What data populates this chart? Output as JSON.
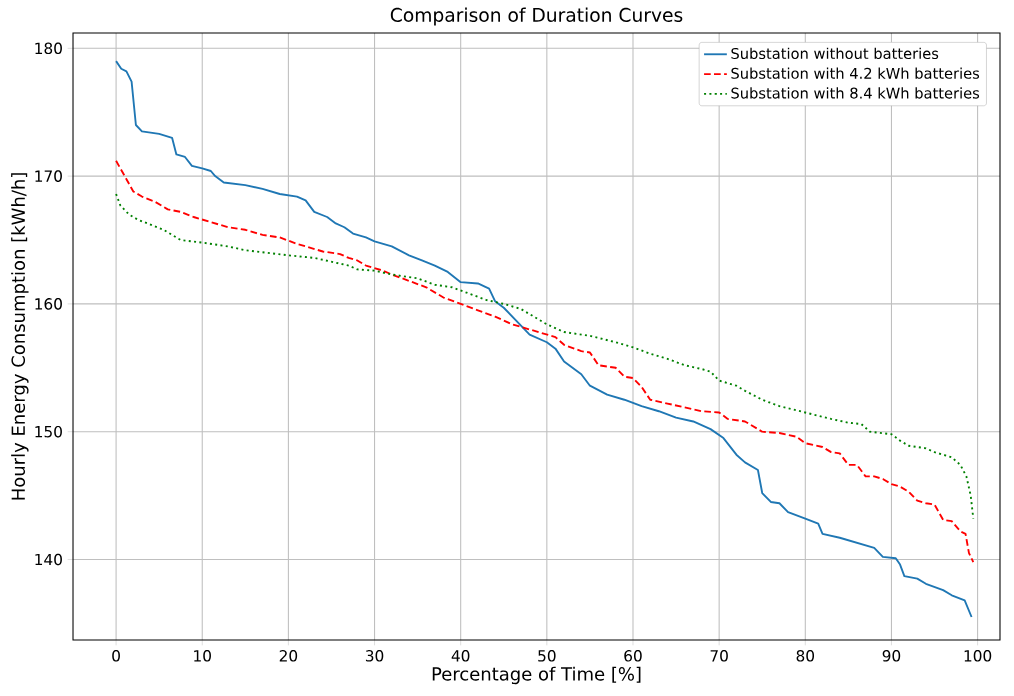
{
  "chart_data": {
    "type": "line",
    "title": "Comparison of Duration Curves",
    "xlabel": "Percentage of Time [%]",
    "ylabel": "Hourly Energy Consumption [kWh/h]",
    "xlim": [
      -5,
      102.6
    ],
    "ylim": [
      133.7,
      181.2
    ],
    "xticks": [
      0,
      10,
      20,
      30,
      40,
      50,
      60,
      70,
      80,
      90,
      100
    ],
    "yticks": [
      140,
      150,
      160,
      170,
      180
    ],
    "grid": true,
    "legend": "top right",
    "series": [
      {
        "name": "Substation without batteries",
        "color": "#1f77b4",
        "line_style": "solid",
        "x": [
          0,
          0.6,
          1.2,
          1.8,
          2.3,
          3,
          5,
          6.5,
          7,
          8,
          8.8,
          10,
          11,
          11.5,
          12.5,
          15,
          17,
          19,
          21,
          22,
          23,
          24.5,
          25.5,
          26.5,
          27.5,
          29,
          30,
          32,
          34,
          35.5,
          37,
          38.5,
          40,
          42,
          43.3,
          44,
          45,
          46,
          48,
          50,
          51,
          52,
          54,
          55,
          57,
          59,
          61,
          63,
          65,
          67,
          69,
          70.5,
          72,
          73,
          74.5,
          75,
          76,
          77,
          78,
          80,
          81.5,
          82,
          84,
          86,
          88,
          89,
          90.5,
          91,
          91.5,
          93,
          94,
          96,
          97,
          98.5,
          99.3
        ],
        "values": [
          179,
          178.4,
          178.2,
          177.4,
          174,
          173.5,
          173.3,
          173,
          171.7,
          171.5,
          170.8,
          170.6,
          170.4,
          170,
          169.5,
          169.3,
          169,
          168.6,
          168.4,
          168.1,
          167.2,
          166.8,
          166.3,
          166,
          165.5,
          165.2,
          164.9,
          164.5,
          163.8,
          163.4,
          163,
          162.5,
          161.7,
          161.6,
          161.2,
          160.2,
          159.7,
          159,
          157.6,
          157,
          156.5,
          155.5,
          154.5,
          153.6,
          152.9,
          152.5,
          152,
          151.6,
          151.1,
          150.8,
          150.2,
          149.5,
          148.2,
          147.6,
          147,
          145.2,
          144.5,
          144.4,
          143.7,
          143.2,
          142.8,
          142,
          141.7,
          141.3,
          140.9,
          140.2,
          140.1,
          139.6,
          138.7,
          138.5,
          138.1,
          137.6,
          137.2,
          136.8,
          135.5
        ]
      },
      {
        "name": "Substation with 4.2 kWh batteries",
        "color": "#ff0000",
        "line_style": "dashed",
        "x": [
          0,
          1,
          2,
          3,
          4.5,
          6,
          7.5,
          9,
          11,
          13,
          15,
          17,
          19,
          21,
          22,
          24,
          26,
          27,
          28,
          29,
          31,
          32,
          34,
          36,
          38,
          40,
          42,
          44,
          46,
          48,
          49,
          51,
          52,
          54,
          55,
          56,
          58,
          59,
          60,
          61,
          62,
          64,
          66,
          68,
          70,
          71,
          73,
          74,
          75,
          77,
          79,
          80,
          82,
          83,
          84,
          85,
          86,
          87,
          88,
          89,
          90,
          91,
          92,
          93,
          94,
          95,
          96,
          97,
          98,
          98.6,
          99,
          99.5
        ],
        "values": [
          171.2,
          170,
          168.8,
          168.4,
          168,
          167.4,
          167.2,
          166.8,
          166.4,
          166,
          165.8,
          165.4,
          165.2,
          164.7,
          164.5,
          164.1,
          163.9,
          163.6,
          163.4,
          163,
          162.6,
          162.3,
          161.8,
          161.3,
          160.5,
          160,
          159.5,
          159,
          158.4,
          158,
          157.8,
          157.4,
          156.8,
          156.3,
          156.2,
          155.2,
          155,
          154.3,
          154.2,
          153.5,
          152.5,
          152.2,
          151.9,
          151.6,
          151.5,
          151,
          150.8,
          150.4,
          150,
          149.9,
          149.6,
          149.1,
          148.8,
          148.4,
          148.3,
          147.4,
          147.4,
          146.5,
          146.5,
          146.3,
          145.9,
          145.7,
          145.3,
          144.6,
          144.4,
          144.3,
          143.1,
          143,
          142.2,
          142,
          140.5,
          139.8
        ]
      },
      {
        "name": "Substation with 8.4 kWh batteries",
        "color": "#008000",
        "line_style": "dotted",
        "x": [
          0,
          0.5,
          1.5,
          2.5,
          4,
          5.5,
          6.5,
          7.5,
          10,
          13,
          15,
          20,
          23,
          25,
          27,
          28,
          30,
          32,
          35,
          37,
          39,
          41,
          43,
          45,
          47,
          48,
          50,
          52,
          55,
          58,
          60,
          62,
          64,
          66,
          68,
          69,
          70,
          72,
          73,
          75,
          77,
          80,
          83,
          85,
          86.5,
          87.5,
          90,
          91,
          92,
          94,
          95,
          97,
          98,
          98.7,
          99.2,
          99.5
        ],
        "values": [
          168.6,
          167.7,
          167,
          166.6,
          166.2,
          165.8,
          165.4,
          165,
          164.8,
          164.5,
          164.2,
          163.8,
          163.6,
          163.3,
          163,
          162.7,
          162.6,
          162.3,
          162,
          161.5,
          161.3,
          160.8,
          160.3,
          160,
          159.6,
          159.2,
          158.4,
          157.8,
          157.5,
          157,
          156.6,
          156.1,
          155.7,
          155.2,
          154.9,
          154.7,
          154,
          153.6,
          153.2,
          152.5,
          152,
          151.5,
          151,
          150.7,
          150.6,
          150,
          149.8,
          149.3,
          148.9,
          148.7,
          148.4,
          148,
          147.4,
          146.5,
          145,
          143.2
        ]
      }
    ]
  }
}
